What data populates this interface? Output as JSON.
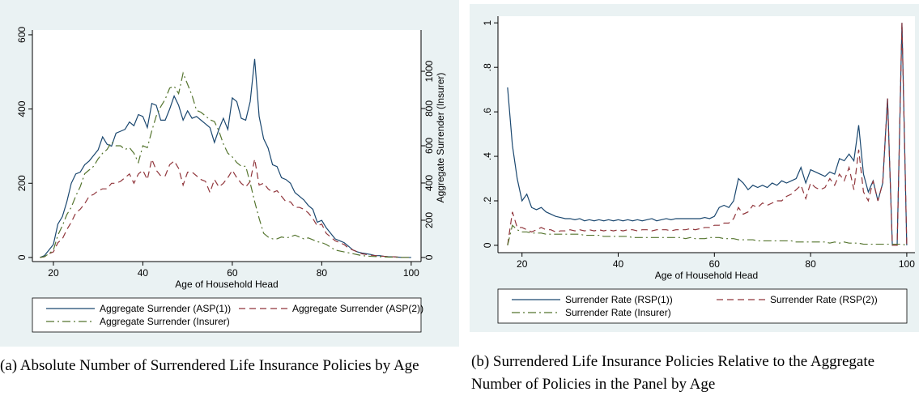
{
  "chart_data": [
    {
      "type": "line",
      "x_label": "Age of Household Head",
      "y2_label": "Aggregate Surrender (Insurer)",
      "caption": "(a) Absolute Number of Surrendered Life Insurance Policies by Age",
      "xlim": [
        15.3,
        102.2
      ],
      "xticks": [
        20,
        40,
        60,
        80,
        100
      ],
      "ylim": [
        -11,
        613
      ],
      "yticks": [
        0,
        200,
        400,
        600
      ],
      "y2lim": [
        -22,
        1222
      ],
      "y2ticks": [
        0,
        200,
        400,
        600,
        800,
        1000
      ],
      "x": [
        17,
        18,
        19,
        20,
        21,
        22,
        23,
        24,
        25,
        26,
        27,
        28,
        29,
        30,
        31,
        32,
        33,
        34,
        35,
        36,
        37,
        38,
        39,
        40,
        41,
        42,
        43,
        44,
        45,
        46,
        47,
        48,
        49,
        50,
        51,
        52,
        53,
        54,
        55,
        56,
        57,
        58,
        59,
        60,
        61,
        62,
        63,
        64,
        65,
        66,
        67,
        68,
        69,
        70,
        71,
        72,
        73,
        74,
        75,
        76,
        77,
        78,
        79,
        80,
        81,
        82,
        83,
        84,
        85,
        86,
        87,
        88,
        89,
        90,
        91,
        92,
        93,
        94,
        95,
        96,
        97,
        98,
        99,
        100
      ],
      "series": [
        {
          "name": "Aggregate Surrender (ASP(1))",
          "color": "#1a476f",
          "style": "solid",
          "values": [
            0,
            5,
            20,
            35,
            90,
            110,
            150,
            200,
            225,
            230,
            250,
            260,
            275,
            290,
            325,
            305,
            300,
            335,
            340,
            345,
            365,
            355,
            385,
            380,
            350,
            415,
            410,
            370,
            370,
            400,
            435,
            410,
            370,
            395,
            375,
            380,
            370,
            360,
            350,
            310,
            345,
            375,
            345,
            430,
            420,
            375,
            370,
            420,
            535,
            380,
            320,
            295,
            250,
            245,
            215,
            210,
            200,
            175,
            165,
            155,
            140,
            130,
            95,
            100,
            80,
            65,
            50,
            45,
            40,
            30,
            20,
            15,
            12,
            10,
            8,
            5,
            5,
            3,
            2,
            2,
            1,
            0,
            0,
            0
          ]
        },
        {
          "name": "Aggregate Surrender (ASP(2))",
          "color": "#90353b",
          "style": "dash",
          "values": [
            0,
            2,
            10,
            15,
            40,
            50,
            75,
            95,
            120,
            130,
            145,
            165,
            170,
            180,
            185,
            185,
            200,
            200,
            205,
            215,
            225,
            200,
            225,
            235,
            210,
            265,
            235,
            220,
            220,
            250,
            260,
            240,
            195,
            230,
            230,
            220,
            210,
            205,
            175,
            210,
            190,
            200,
            215,
            235,
            215,
            200,
            190,
            205,
            265,
            195,
            200,
            185,
            175,
            180,
            165,
            150,
            150,
            135,
            135,
            130,
            120,
            105,
            85,
            90,
            65,
            55,
            45,
            40,
            35,
            25,
            20,
            15,
            10,
            8,
            6,
            5,
            4,
            3,
            2,
            2,
            1,
            0,
            0,
            0
          ]
        },
        {
          "name": "Aggregate Surrender (Insurer)",
          "color": "#55752f",
          "style": "dashdot",
          "axis": "y2",
          "values": [
            0,
            5,
            20,
            40,
            120,
            170,
            230,
            270,
            330,
            380,
            450,
            470,
            490,
            530,
            560,
            580,
            620,
            600,
            600,
            580,
            590,
            560,
            510,
            600,
            590,
            680,
            760,
            810,
            850,
            910,
            920,
            880,
            990,
            930,
            870,
            790,
            780,
            760,
            740,
            730,
            680,
            610,
            560,
            540,
            510,
            490,
            490,
            400,
            300,
            210,
            130,
            110,
            100,
            100,
            110,
            105,
            110,
            120,
            110,
            100,
            105,
            95,
            85,
            80,
            70,
            55,
            40,
            35,
            30,
            25,
            20,
            15,
            10,
            8,
            6,
            5,
            4,
            3,
            2,
            2,
            1,
            0,
            0,
            0
          ]
        }
      ]
    },
    {
      "type": "line",
      "x_label": "Age of Household Head",
      "caption": "(b) Surrendered Life Insurance Policies Relative to the Aggregate Number of Policies in the Panel by Age",
      "xlim": [
        15,
        101.7
      ],
      "xticks": [
        20,
        40,
        60,
        80,
        100
      ],
      "ylim": [
        -0.033,
        1.03
      ],
      "yticks": [
        0,
        {
          "value": 0.2,
          "label": ".2"
        },
        {
          "value": 0.4,
          "label": ".4"
        },
        {
          "value": 0.6,
          "label": ".6"
        },
        {
          "value": 0.8,
          "label": ".8"
        },
        1
      ],
      "x": [
        17,
        18,
        19,
        20,
        21,
        22,
        23,
        24,
        25,
        26,
        27,
        28,
        29,
        30,
        31,
        32,
        33,
        34,
        35,
        36,
        37,
        38,
        39,
        40,
        41,
        42,
        43,
        44,
        45,
        46,
        47,
        48,
        49,
        50,
        51,
        52,
        53,
        54,
        55,
        56,
        57,
        58,
        59,
        60,
        61,
        62,
        63,
        64,
        65,
        66,
        67,
        68,
        69,
        70,
        71,
        72,
        73,
        74,
        75,
        76,
        77,
        78,
        79,
        80,
        81,
        82,
        83,
        84,
        85,
        86,
        87,
        88,
        89,
        90,
        91,
        92,
        93,
        94,
        95,
        96,
        97,
        98,
        99,
        100
      ],
      "series": [
        {
          "name": "Surrender Rate (RSP(1))",
          "color": "#1a476f",
          "style": "solid",
          "values": [
            0.71,
            0.45,
            0.3,
            0.2,
            0.23,
            0.17,
            0.16,
            0.17,
            0.15,
            0.14,
            0.13,
            0.125,
            0.12,
            0.12,
            0.115,
            0.12,
            0.11,
            0.115,
            0.11,
            0.115,
            0.11,
            0.115,
            0.11,
            0.115,
            0.11,
            0.115,
            0.11,
            0.115,
            0.11,
            0.115,
            0.12,
            0.11,
            0.115,
            0.12,
            0.115,
            0.12,
            0.12,
            0.12,
            0.12,
            0.12,
            0.12,
            0.125,
            0.12,
            0.13,
            0.17,
            0.18,
            0.17,
            0.2,
            0.3,
            0.28,
            0.25,
            0.27,
            0.26,
            0.27,
            0.26,
            0.28,
            0.27,
            0.29,
            0.28,
            0.29,
            0.3,
            0.35,
            0.28,
            0.34,
            0.33,
            0.32,
            0.31,
            0.33,
            0.32,
            0.39,
            0.38,
            0.41,
            0.38,
            0.54,
            0.32,
            0.24,
            0.29,
            0.2,
            0.28,
            0.66,
            0,
            0,
            1,
            0
          ]
        },
        {
          "name": "Surrender Rate (RSP(2))",
          "color": "#90353b",
          "style": "dash",
          "values": [
            0,
            0.15,
            0.08,
            0.08,
            0.07,
            0.06,
            0.07,
            0.08,
            0.07,
            0.07,
            0.06,
            0.065,
            0.065,
            0.07,
            0.065,
            0.07,
            0.065,
            0.07,
            0.065,
            0.07,
            0.065,
            0.07,
            0.065,
            0.07,
            0.065,
            0.07,
            0.07,
            0.065,
            0.07,
            0.07,
            0.065,
            0.07,
            0.07,
            0.07,
            0.065,
            0.07,
            0.07,
            0.07,
            0.075,
            0.07,
            0.075,
            0.08,
            0.08,
            0.09,
            0.09,
            0.1,
            0.1,
            0.12,
            0.17,
            0.14,
            0.15,
            0.18,
            0.17,
            0.19,
            0.18,
            0.19,
            0.2,
            0.2,
            0.22,
            0.23,
            0.25,
            0.27,
            0.21,
            0.28,
            0.26,
            0.25,
            0.26,
            0.3,
            0.27,
            0.32,
            0.29,
            0.35,
            0.25,
            0.43,
            0.24,
            0.2,
            0.29,
            0.2,
            0.28,
            0.66,
            0,
            0,
            1,
            0
          ]
        },
        {
          "name": "Surrender Rate (Insurer)",
          "color": "#55752f",
          "style": "dashdot",
          "values": [
            0,
            0.09,
            0.07,
            0.06,
            0.06,
            0.055,
            0.055,
            0.055,
            0.05,
            0.05,
            0.05,
            0.05,
            0.05,
            0.05,
            0.05,
            0.05,
            0.045,
            0.045,
            0.045,
            0.045,
            0.04,
            0.04,
            0.04,
            0.04,
            0.04,
            0.04,
            0.035,
            0.035,
            0.035,
            0.035,
            0.035,
            0.035,
            0.035,
            0.035,
            0.035,
            0.035,
            0.035,
            0.03,
            0.035,
            0.03,
            0.03,
            0.03,
            0.035,
            0.035,
            0.035,
            0.03,
            0.03,
            0.03,
            0.025,
            0.025,
            0.025,
            0.025,
            0.02,
            0.02,
            0.02,
            0.02,
            0.02,
            0.02,
            0.02,
            0.02,
            0.015,
            0.015,
            0.015,
            0.015,
            0.015,
            0.015,
            0.015,
            0.01,
            0.015,
            0.01,
            0.015,
            0.01,
            0.01,
            0.01,
            0.005,
            0.005,
            0.005,
            0.005,
            0.005,
            0.005,
            0.005,
            0.005,
            0.005,
            0
          ]
        }
      ]
    }
  ]
}
